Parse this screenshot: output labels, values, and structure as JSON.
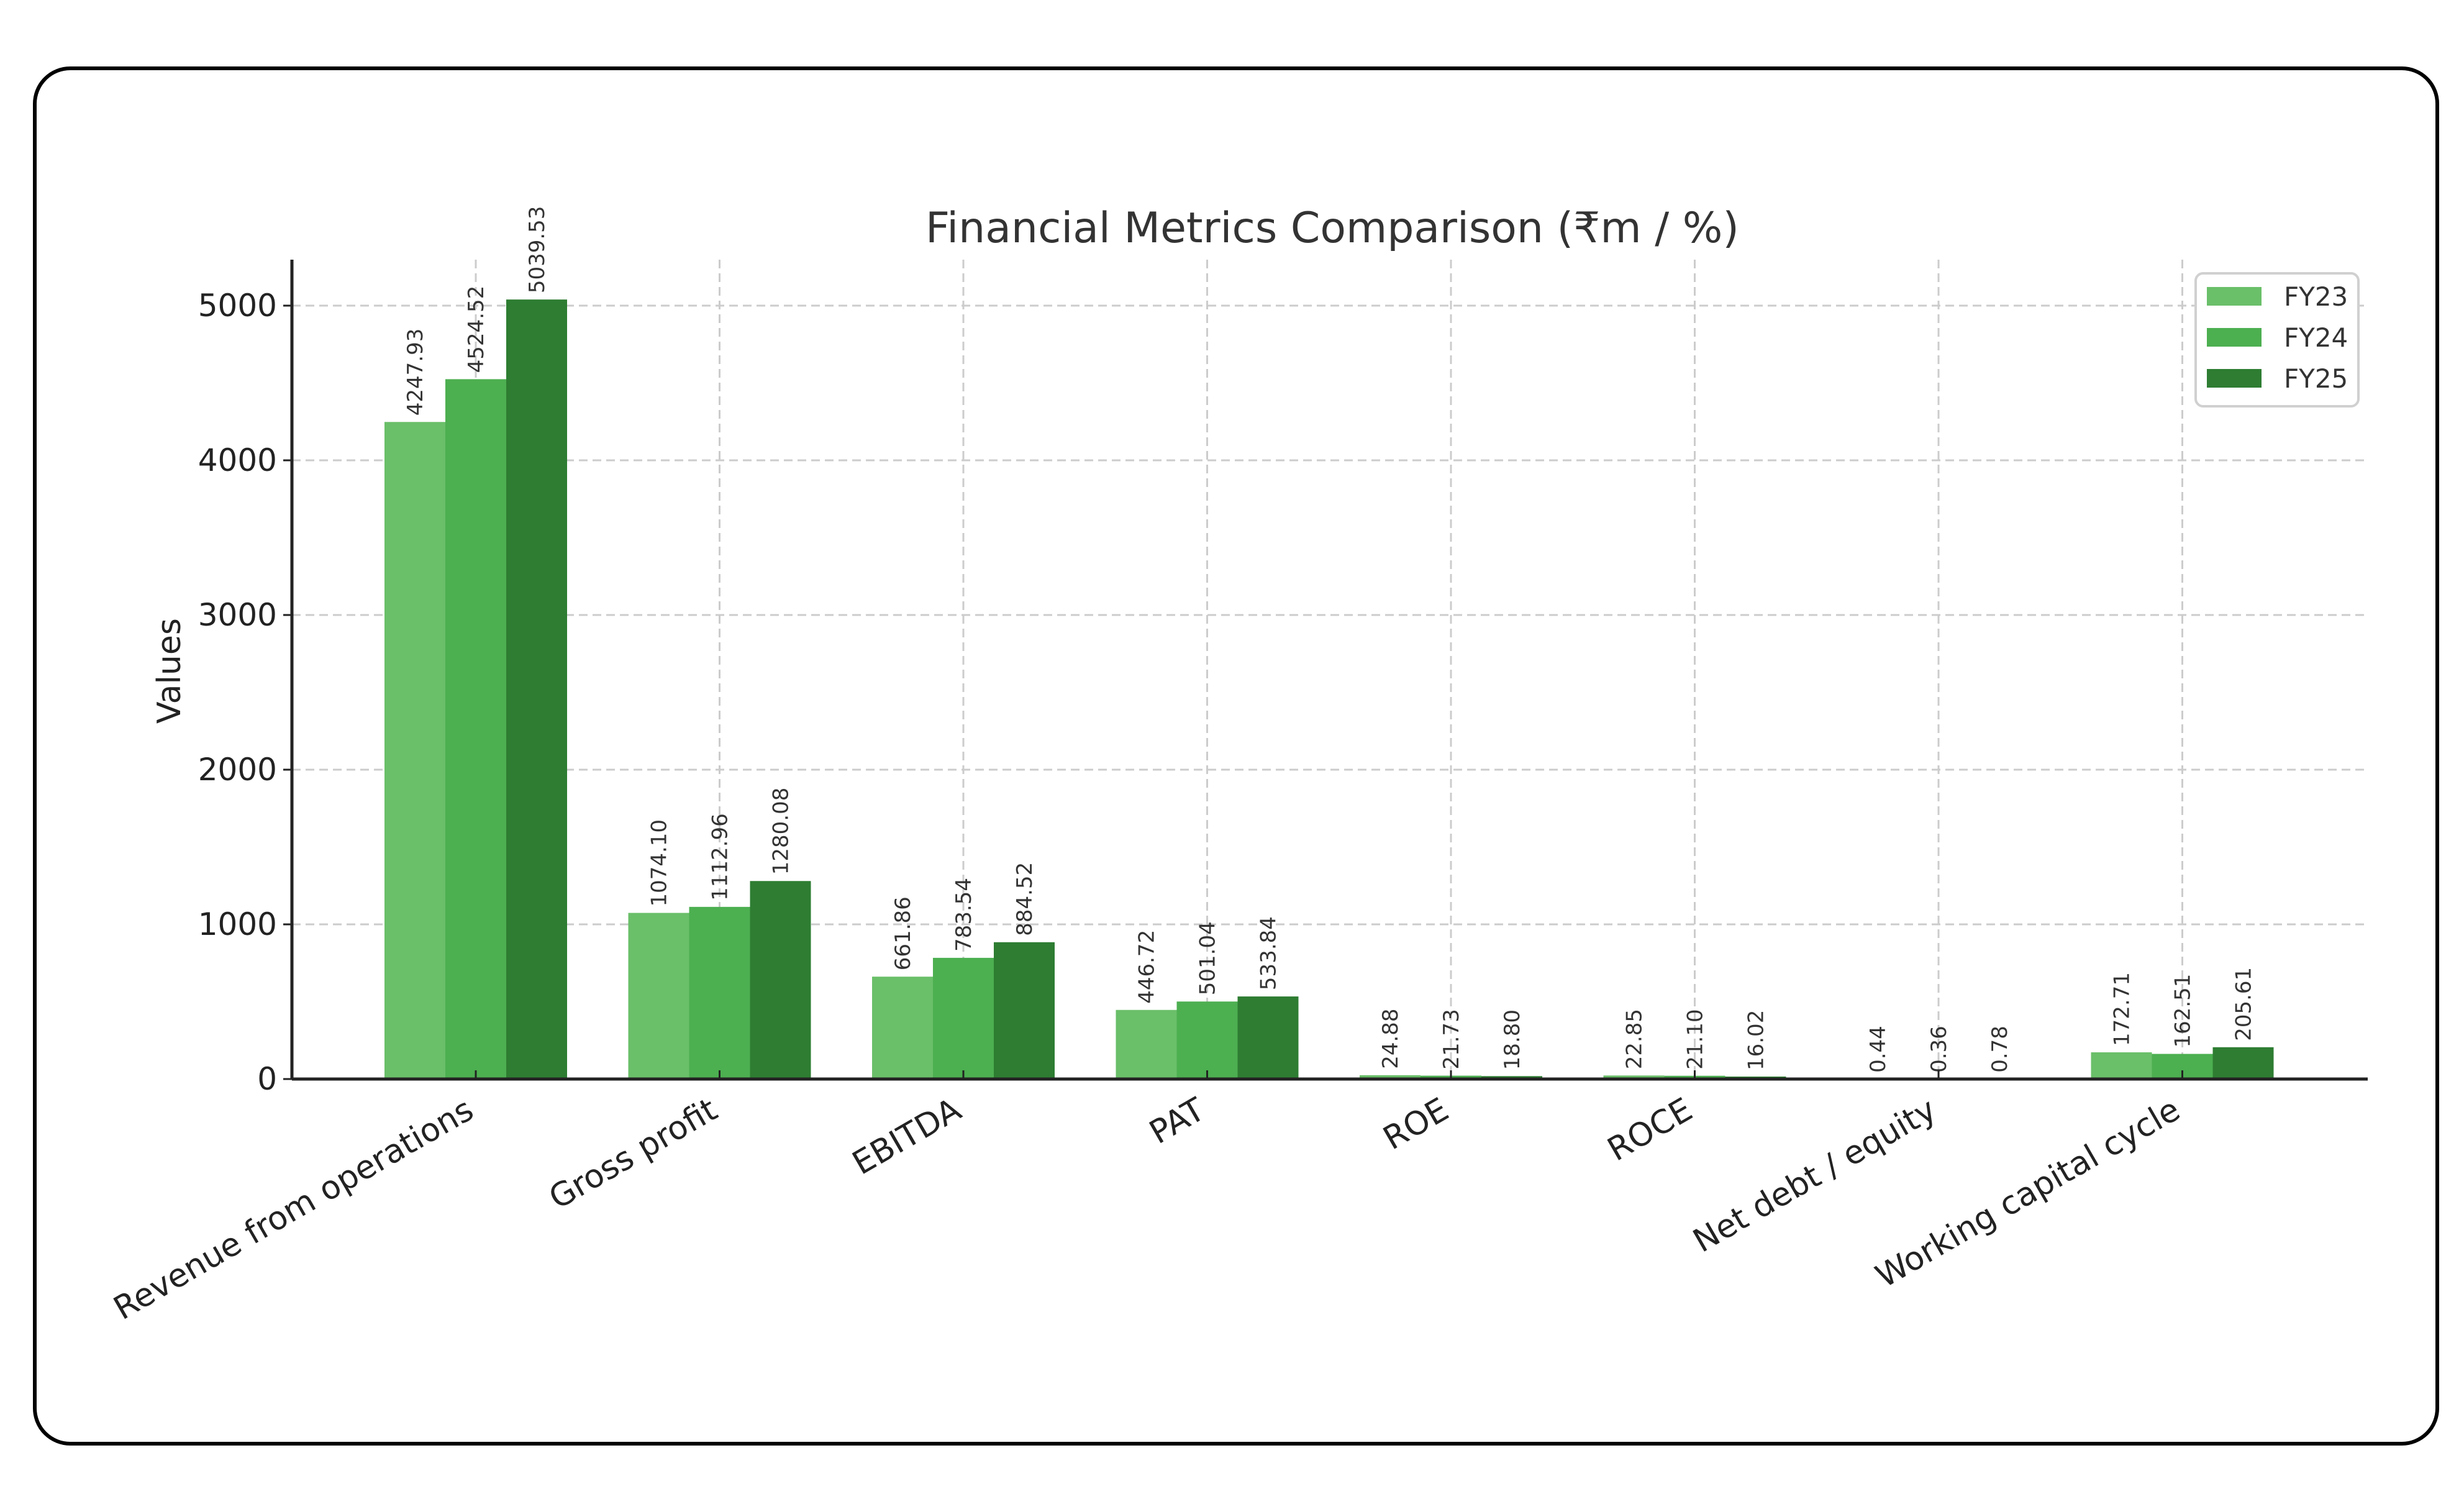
{
  "chart_data": {
    "type": "bar",
    "title": "Financial Metrics Comparison (₹m / %)",
    "xlabel": "",
    "ylabel": "Values",
    "ylim": [
      0,
      5300
    ],
    "yticks": [
      0,
      1000,
      2000,
      3000,
      4000,
      5000
    ],
    "grid": true,
    "legend_position": "upper right",
    "categories": [
      "Revenue from operations",
      "Gross profit",
      "EBITDA",
      "PAT",
      "ROE",
      "ROCE",
      "Net debt / equity",
      "Working capital cycle"
    ],
    "series": [
      {
        "name": "FY23",
        "color": "#6abf69",
        "values": [
          4247.93,
          1074.1,
          661.86,
          446.72,
          24.88,
          22.85,
          0.44,
          172.71
        ]
      },
      {
        "name": "FY24",
        "color": "#4caf50",
        "values": [
          4524.52,
          1112.96,
          783.54,
          501.04,
          21.73,
          21.1,
          0.36,
          162.51
        ]
      },
      {
        "name": "FY25",
        "color": "#2e7d32",
        "values": [
          5039.53,
          1280.08,
          884.52,
          533.84,
          18.8,
          16.02,
          0.78,
          205.61
        ]
      }
    ],
    "value_labels": [
      [
        "4247.93",
        "1074.10",
        "661.86",
        "446.72",
        "24.88",
        "22.85",
        "0.44",
        "172.71"
      ],
      [
        "4524.52",
        "1112.96",
        "783.54",
        "501.04",
        "21.73",
        "21.10",
        "0.36",
        "162.51"
      ],
      [
        "5039.53",
        "1280.08",
        "884.52",
        "533.84",
        "18.80",
        "16.02",
        "0.78",
        "205.61"
      ]
    ]
  }
}
